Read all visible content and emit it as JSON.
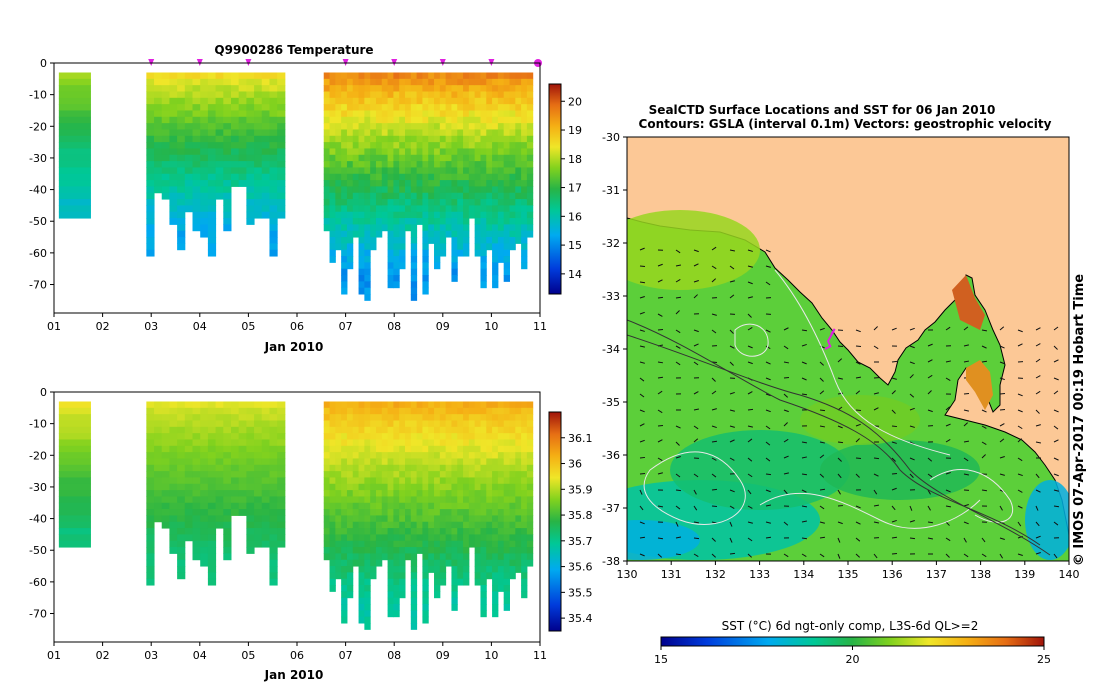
{
  "chart_data": [
    {
      "type": "heatmap",
      "id": "temperature-section",
      "title": "Q9900286  Temperature",
      "xlabel": "Jan 2010",
      "x_ticks": [
        "01",
        "02",
        "03",
        "04",
        "05",
        "06",
        "07",
        "08",
        "09",
        "10",
        "11"
      ],
      "x_range_days": [
        1,
        11
      ],
      "y_ticks": [
        "0",
        "-10",
        "-20",
        "-30",
        "-40",
        "-50",
        "-60",
        "-70"
      ],
      "y_range": [
        0,
        -79
      ],
      "colorbar": {
        "ticks": [
          "14",
          "15",
          "16",
          "17",
          "18",
          "19",
          "20"
        ],
        "range": [
          13.3,
          20.6
        ]
      },
      "profile_markers_day": [
        3,
        4,
        5,
        7,
        8,
        9,
        10,
        11
      ],
      "data_segments": [
        {
          "start_day": 1.1,
          "end_day": 1.75,
          "cast_count": 1,
          "max_depth": 49,
          "surface_value": 17.9,
          "bottom_value": 15.8
        },
        {
          "start_day": 2.9,
          "end_day": 5.75,
          "cast_count": 18,
          "max_depth": 61,
          "surface_value": 18.5,
          "bottom_value": 15.3
        },
        {
          "start_day": 6.55,
          "end_day": 10.85,
          "cast_count": 36,
          "max_depth": 75,
          "surface_value": 19.6,
          "bottom_value": 15.1
        }
      ]
    },
    {
      "type": "heatmap",
      "id": "salinity-section",
      "title": "",
      "xlabel": "Jan 2010",
      "x_ticks": [
        "01",
        "02",
        "03",
        "04",
        "05",
        "06",
        "07",
        "08",
        "09",
        "10",
        "11"
      ],
      "x_range_days": [
        1,
        11
      ],
      "y_ticks": [
        "0",
        "-10",
        "-20",
        "-30",
        "-40",
        "-50",
        "-60",
        "-70"
      ],
      "y_range": [
        0,
        -79
      ],
      "colorbar": {
        "ticks": [
          "35.4",
          "35.5",
          "35.6",
          "35.7",
          "35.8",
          "35.9",
          "36",
          "36.1"
        ],
        "range": [
          35.35,
          36.2
        ]
      },
      "data_segments": [
        {
          "start_day": 1.1,
          "end_day": 1.75,
          "cast_count": 1,
          "max_depth": 49,
          "surface_value": 35.95,
          "bottom_value": 35.72
        },
        {
          "start_day": 2.9,
          "end_day": 5.75,
          "cast_count": 18,
          "max_depth": 61,
          "surface_value": 35.93,
          "bottom_value": 35.72
        },
        {
          "start_day": 6.55,
          "end_day": 10.85,
          "cast_count": 36,
          "max_depth": 75,
          "surface_value": 36.03,
          "bottom_value": 35.68
        }
      ]
    },
    {
      "type": "heatmap",
      "id": "sst-map",
      "title_line1": "SealCTD Surface Locations and SST for 06 Jan 2010",
      "title_line2": "Contours: GSLA (interval 0.1m) Vectors: geostrophic velocity",
      "x_ticks": [
        "130",
        "131",
        "132",
        "133",
        "134",
        "135",
        "136",
        "137",
        "138",
        "139",
        "140"
      ],
      "x_range_lon": [
        130,
        140
      ],
      "y_ticks": [
        "-30",
        "-31",
        "-32",
        "-33",
        "-34",
        "-35",
        "-36",
        "-37",
        "-38"
      ],
      "y_range_lat": [
        -30,
        -38
      ],
      "colorbar_label": "SST (°C) 6d ngt-only comp, L3S-6d QL>=2",
      "colorbar": {
        "ticks": [
          "15",
          "20",
          "25"
        ],
        "range": [
          15,
          25
        ]
      },
      "seal_track_lonlat": [
        [
          134.62,
          -33.72
        ],
        [
          134.7,
          -33.62
        ],
        [
          134.55,
          -33.85
        ],
        [
          134.6,
          -33.95
        ],
        [
          134.48,
          -34.0
        ]
      ],
      "land_color": "#fcc896"
    }
  ],
  "credit": "© IMOS 07-Apr-2017 00:19 Hobart Time",
  "colors": {
    "marker": "#e020e0",
    "axis": "#000000"
  }
}
